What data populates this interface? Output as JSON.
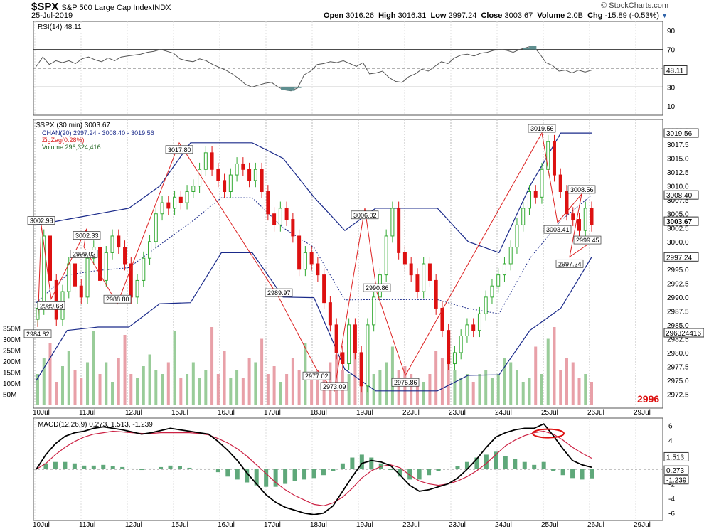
{
  "header": {
    "symbol": "$SPX",
    "name": "S&P 500 Large Cap Index",
    "exchange": "INDX",
    "date": "25-Jul-2019",
    "brand": "© StockCharts.com",
    "open_label": "Open",
    "open": "3016.26",
    "high_label": "High",
    "high": "3016.31",
    "low_label": "Low",
    "low": "2997.24",
    "close_label": "Close",
    "close": "3003.67",
    "volume_label": "Volume",
    "volume": "2.0B",
    "chg_label": "Chg",
    "chg": "-15.89 (-0.53%)"
  },
  "colors": {
    "up": "#33aa33",
    "down": "#dd1111",
    "channel": "#1a2a8a",
    "zigzag": "#dd2222",
    "volume_up": "#99cc99",
    "volume_down": "#e8a0a8",
    "rsi_fill": "#5f8f90",
    "macd": "#000000",
    "signal": "#cc2244",
    "hist": "#5fa87a"
  },
  "chart_data": [
    {
      "type": "line",
      "panel": "rsi",
      "legend": "RSI(14) 48.11",
      "last_value": "48.11",
      "ylim": [
        0,
        100
      ],
      "yticks": [
        10,
        30,
        50,
        70,
        90
      ],
      "reference_lines": [
        30,
        70
      ],
      "values": [
        52,
        62,
        54,
        58,
        56,
        58,
        55,
        60,
        62,
        59,
        57,
        61,
        58,
        62,
        63,
        64,
        65,
        67,
        68,
        70,
        68,
        66,
        60,
        58,
        57,
        60,
        58,
        54,
        51,
        48,
        44,
        39,
        33,
        30,
        32,
        34,
        35,
        30,
        27,
        26,
        29,
        43,
        47,
        54,
        55,
        57,
        56,
        58,
        55,
        52,
        56,
        44,
        45,
        47,
        40,
        36,
        35,
        41,
        44,
        49,
        47,
        52,
        57,
        55,
        61,
        64,
        65,
        63,
        66,
        67,
        69,
        70,
        69,
        67,
        70,
        72,
        74,
        66,
        56,
        53,
        47,
        48,
        45,
        48,
        46,
        48
      ]
    },
    {
      "type": "candlestick",
      "panel": "price",
      "legend": "$SPX (30 min) 3003.67",
      "channel_legend": "CHAN(20) 2997.24 - 3008.40 - 3019.56",
      "zigzag_legend": "ZigZag(0.28%)",
      "volume_legend": "Volume 296,324,416",
      "ylim": [
        2970,
        3022
      ],
      "yticks": [
        "2972.5",
        "2975.0",
        "2977.5",
        "2980.0",
        "2982.5",
        "2985.0",
        "2987.5",
        "2990.0",
        "2992.5",
        "2995.0",
        "2997.5",
        "3000.0",
        "3002.5",
        "3005.0",
        "3007.5",
        "3010.0",
        "3012.5",
        "3015.0",
        "3017.5",
        "3020.0"
      ],
      "x_labels": [
        "10Jul",
        "11Jul",
        "12Jul",
        "15Jul",
        "16Jul",
        "17Jul",
        "18Jul",
        "19Jul",
        "22Jul",
        "23Jul",
        "24Jul",
        "25Jul",
        "26Jul",
        "29Jul"
      ],
      "volume_ticks": [
        "50M",
        "100M",
        "150M",
        "200M",
        "250M",
        "300M",
        "350M"
      ],
      "right_tags": [
        "3019.56",
        "3008.40",
        "3003.67",
        "2997.24",
        "296324416"
      ],
      "big_label": "2996",
      "zigzag_points": [
        {
          "label": "2984.62",
          "value": 2984.62
        },
        {
          "label": "3002.98",
          "value": 3002.98
        },
        {
          "label": "2989.68",
          "value": 2989.68
        },
        {
          "label": "3002.33",
          "value": 3002.33
        },
        {
          "label": "2999.02",
          "value": 2999.02
        },
        {
          "label": "2988.80",
          "value": 2988.8
        },
        {
          "label": "3017.80",
          "value": 3017.8
        },
        {
          "label": "2989.97",
          "value": 2989.97
        },
        {
          "label": "2977.02",
          "value": 2977.02
        },
        {
          "label": "2973.09",
          "value": 2973.09
        },
        {
          "label": "3006.02",
          "value": 3006.02
        },
        {
          "label": "2990.86",
          "value": 2990.86
        },
        {
          "label": "2975.86",
          "value": 2975.86
        },
        {
          "label": "3019.56",
          "value": 3019.56
        },
        {
          "label": "3003.41",
          "value": 3003.41
        },
        {
          "label": "3008.56",
          "value": 3008.56
        },
        {
          "label": "2997.24",
          "value": 2997.24
        },
        {
          "label": "2999.45",
          "value": 2999.45
        }
      ],
      "closes": [
        2988,
        3001,
        2993,
        2986,
        2991,
        2996,
        2992,
        2990,
        2997,
        2999,
        2993,
        2998,
        3001,
        2999,
        2996,
        2990,
        2993,
        2997,
        3000,
        3005,
        3007,
        3006,
        3008,
        3007,
        3009,
        3010,
        3013,
        3016,
        3013,
        3011,
        3009,
        3012,
        3014,
        3013,
        3011,
        3013,
        3009,
        3005,
        3003,
        3006,
        3004,
        3001,
        2995,
        2998,
        2996,
        2994,
        2989,
        2985,
        2980,
        2978,
        2985,
        2980,
        2974,
        2985,
        2990,
        2994,
        3001,
        3006,
        2998,
        2996,
        2994,
        2991,
        2996,
        2993,
        2988,
        2984,
        2978,
        2980,
        2983,
        2985,
        2984,
        2987,
        2990,
        2992,
        2994,
        2996,
        2999,
        3003,
        3006,
        3009,
        3008,
        3013,
        3018,
        3012,
        3009,
        3005,
        3004,
        3002,
        3006,
        3003
      ]
    },
    {
      "type": "line",
      "panel": "macd",
      "legend": "MACD(12,26,9) 0.273, 1.513, -1.239",
      "ylim": [
        -7,
        7
      ],
      "yticks": [
        -6,
        -4,
        -2,
        0,
        2,
        4,
        6
      ],
      "right_tags": [
        "1.513",
        "0.273",
        "-1.239"
      ],
      "x_labels": [
        "10Jul",
        "11Jul",
        "12Jul",
        "15Jul",
        "16Jul",
        "17Jul",
        "18Jul",
        "19Jul",
        "22Jul",
        "23Jul",
        "24Jul",
        "25Jul",
        "26Jul",
        "29Jul"
      ],
      "macd": [
        0,
        2,
        3.5,
        4.5,
        5,
        5.2,
        5.6,
        5.8,
        5.6,
        5.4,
        5.1,
        4.8,
        5.0,
        5.3,
        5.6,
        5.4,
        5.2,
        5.0,
        4.8,
        3.8,
        2.6,
        1.2,
        -0.5,
        -2.0,
        -3.5,
        -4.5,
        -5.2,
        -5.6,
        -6.0,
        -6.2,
        -6.0,
        -5.0,
        -3.0,
        -1.0,
        0.8,
        1.2,
        1.0,
        0.5,
        -0.8,
        -2.2,
        -3.0,
        -2.8,
        -2.4,
        -2.0,
        -1.2,
        0.0,
        1.4,
        3.0,
        4.4,
        5.0,
        5.4,
        5.6,
        5.6,
        6.2,
        4.6,
        2.8,
        1.2,
        0.6,
        0.27
      ],
      "signal": [
        0,
        0.8,
        2,
        3,
        3.8,
        4.4,
        4.8,
        5.0,
        5.2,
        5.1,
        5.0,
        4.9,
        4.9,
        5.0,
        5.0,
        5.0,
        5.0,
        4.9,
        4.7,
        4.2,
        3.6,
        2.8,
        1.8,
        0.6,
        -0.6,
        -1.8,
        -2.8,
        -3.6,
        -4.2,
        -4.8,
        -5.0,
        -4.6,
        -3.8,
        -2.6,
        -1.2,
        -0.2,
        0.4,
        0.6,
        0.2,
        -0.8,
        -1.6,
        -2.0,
        -2.2,
        -2.0,
        -1.6,
        -1.0,
        -0.2,
        0.8,
        2.0,
        3.2,
        4.0,
        4.6,
        5.0,
        5.2,
        4.8,
        4.0,
        3.0,
        2.2,
        1.51
      ],
      "histogram": [
        0,
        0.8,
        1.0,
        1.0,
        0.8,
        0.5,
        0.5,
        0.6,
        0.4,
        0.3,
        0.1,
        -0.1,
        0.1,
        0.3,
        0.5,
        0.4,
        0.2,
        0.1,
        0.1,
        -0.4,
        -1.0,
        -1.4,
        -1.8,
        -2.2,
        -2.4,
        -2.4,
        -2.0,
        -1.6,
        -1.4,
        -1.2,
        -0.8,
        -0.2,
        0.8,
        1.6,
        2.0,
        1.6,
        0.8,
        -0.1,
        -1.0,
        -1.4,
        -1.4,
        -0.8,
        -0.2,
        0.0,
        0.4,
        1.0,
        1.6,
        2.0,
        2.4,
        1.8,
        1.4,
        1.0,
        0.6,
        1.0,
        -0.2,
        -0.8,
        -1.2,
        -1.4,
        -1.24
      ]
    }
  ]
}
